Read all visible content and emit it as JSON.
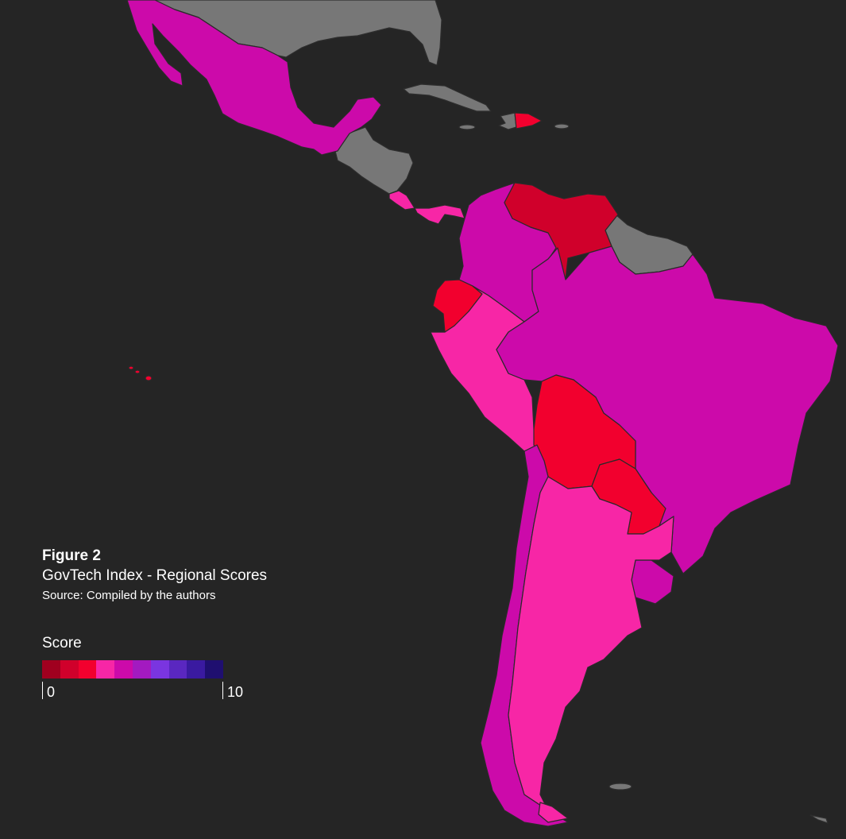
{
  "caption": {
    "figure_label": "Figure 2",
    "title": "GovTech Index - Regional Scores",
    "source": "Source: Compiled by the authors"
  },
  "legend": {
    "title": "Score",
    "min_label": "0",
    "max_label": "10",
    "scale_colors": [
      "#a0001f",
      "#d0002b",
      "#f2002e",
      "#f726a6",
      "#cc0aaa",
      "#a31ac0",
      "#7a35e0",
      "#5a27c0",
      "#3a1aa0",
      "#1f0f70"
    ]
  },
  "map": {
    "background": "#252525",
    "no_data_color": "#777777",
    "countries": [
      {
        "name": "Mexico",
        "color": "#cc0aaa"
      },
      {
        "name": "Costa Rica",
        "color": "#f726a6"
      },
      {
        "name": "Panama",
        "color": "#f726a6"
      },
      {
        "name": "Dominican Republic",
        "color": "#f2002e"
      },
      {
        "name": "Colombia",
        "color": "#cc0aaa"
      },
      {
        "name": "Venezuela",
        "color": "#d0002b"
      },
      {
        "name": "Ecuador",
        "color": "#f2002e"
      },
      {
        "name": "Peru",
        "color": "#f726a6"
      },
      {
        "name": "Brazil",
        "color": "#cc0aaa"
      },
      {
        "name": "Bolivia",
        "color": "#f2002e"
      },
      {
        "name": "Paraguay",
        "color": "#f2002e"
      },
      {
        "name": "Chile",
        "color": "#cc0aaa"
      },
      {
        "name": "Argentina",
        "color": "#f726a6"
      },
      {
        "name": "Uruguay",
        "color": "#cc0aaa"
      },
      {
        "name": "Galapagos",
        "color": "#f2002e"
      }
    ]
  }
}
